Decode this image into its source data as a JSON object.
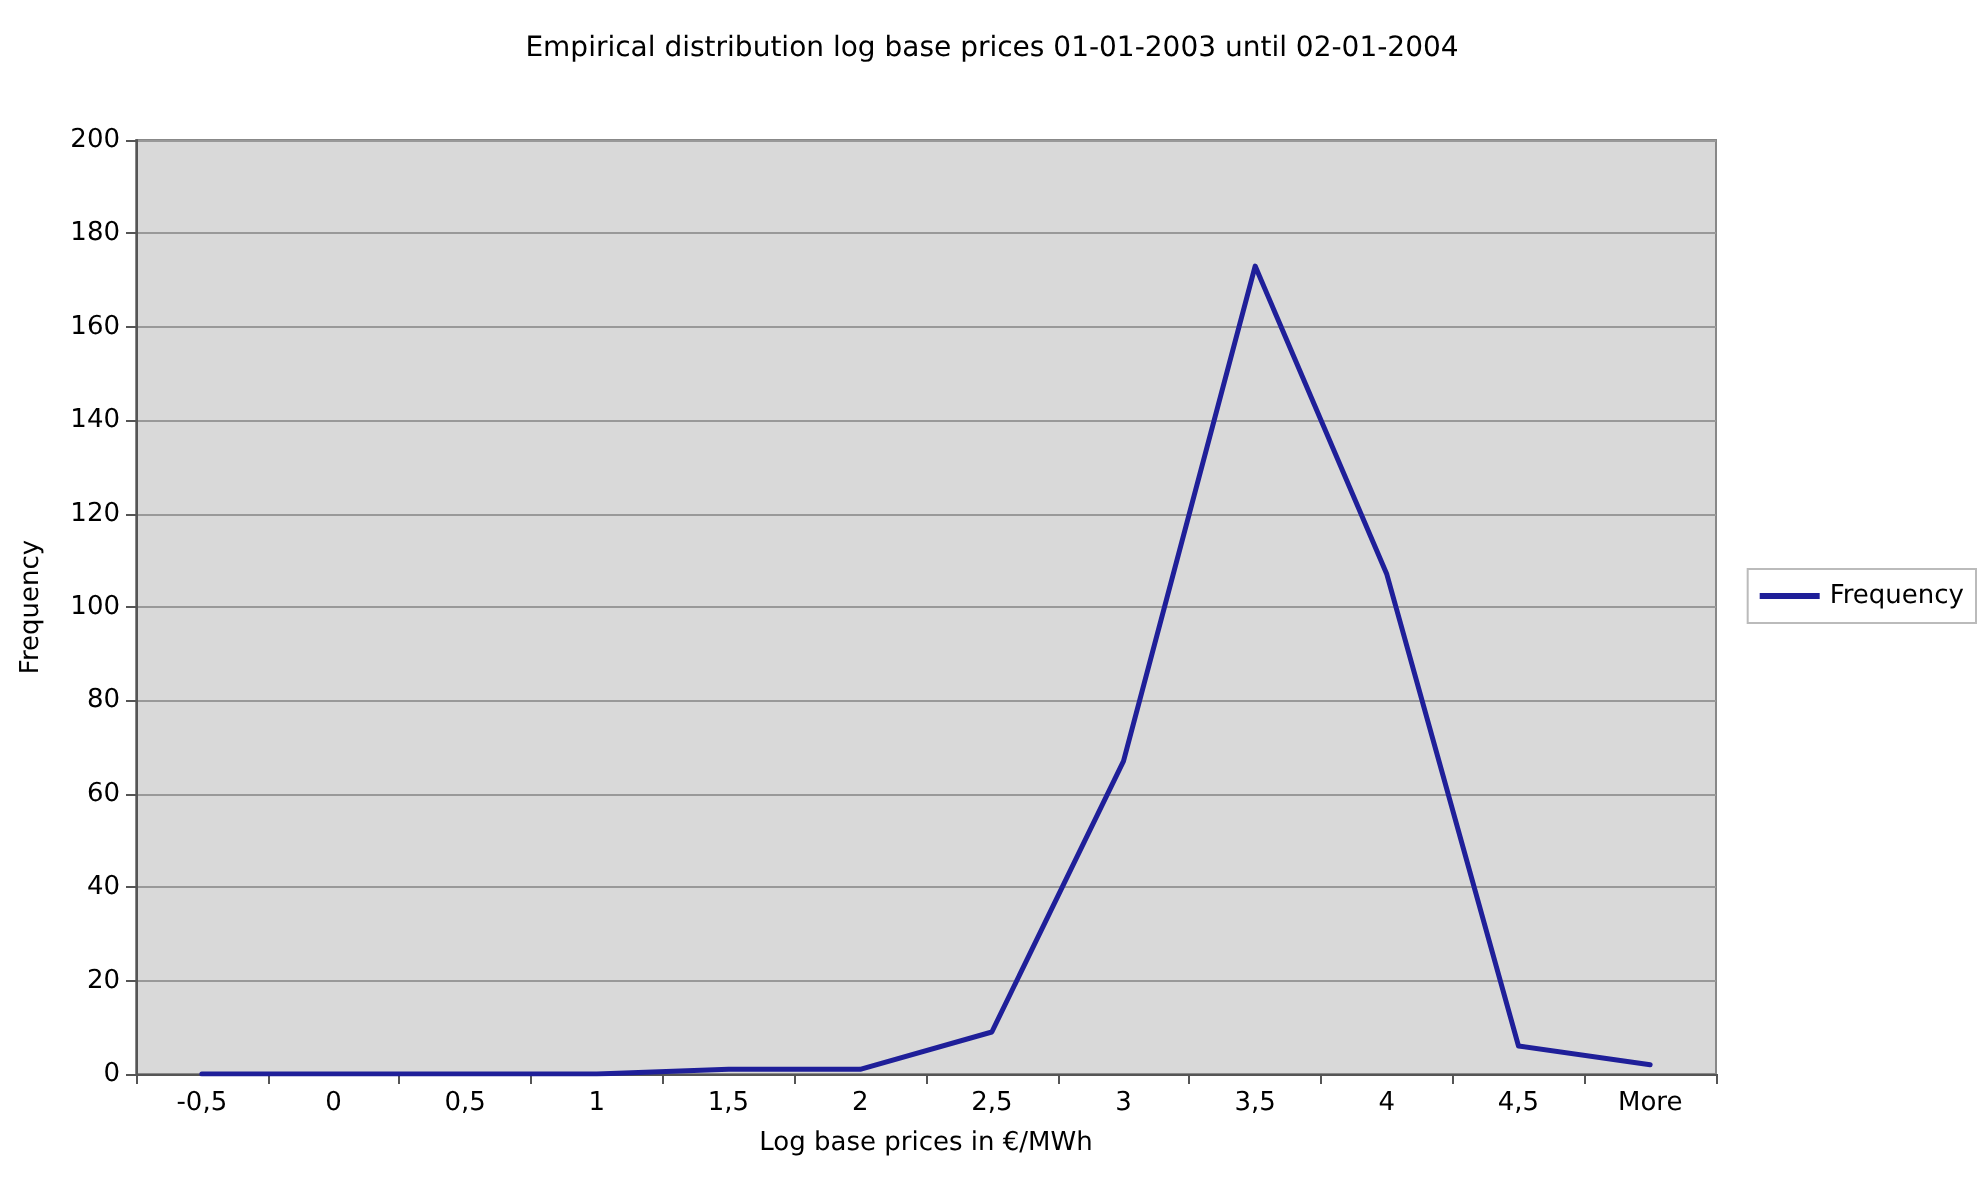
{
  "chart_data": {
    "type": "line",
    "title": "Empirical distribution log base prices 01-01-2003 until 02-01-2004",
    "xlabel": "Log base prices in €/MWh",
    "ylabel": "Frequency",
    "categories": [
      "-0,5",
      "0",
      "0,5",
      "1",
      "1,5",
      "2",
      "2,5",
      "3",
      "3,5",
      "4",
      "4,5",
      "More"
    ],
    "series": [
      {
        "name": "Frequency",
        "color": "#1f1f99",
        "values": [
          0,
          0,
          0,
          0,
          1,
          1,
          9,
          67,
          173,
          107,
          6,
          2
        ]
      }
    ],
    "ylim": [
      0,
      200
    ],
    "yticks": [
      0,
      20,
      40,
      60,
      80,
      100,
      120,
      140,
      160,
      180,
      200
    ],
    "grid": "y",
    "legend": "right",
    "marker": "none",
    "line_style": "solid"
  }
}
